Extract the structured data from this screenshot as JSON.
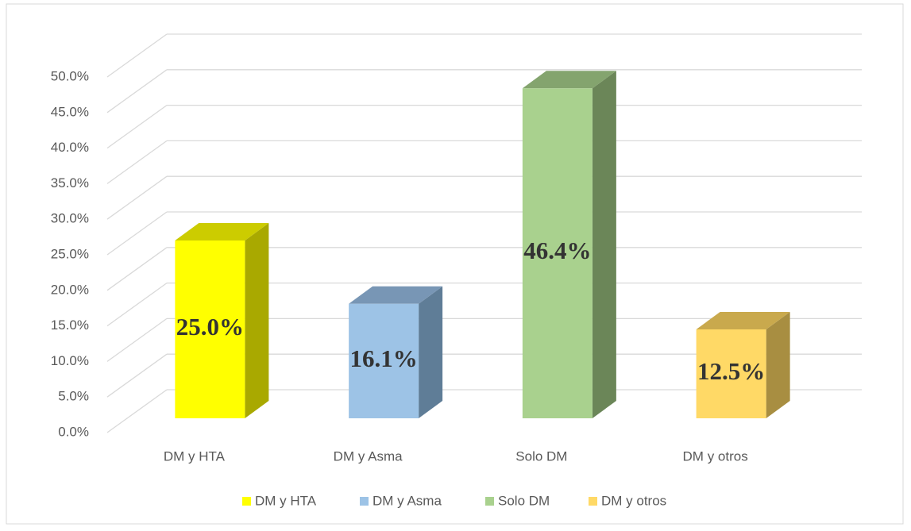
{
  "chart_data": {
    "type": "bar3d",
    "categories": [
      "DM y HTA",
      "DM y Asma",
      "Solo DM",
      "DM y otros"
    ],
    "values": [
      25.0,
      16.1,
      46.4,
      12.5
    ],
    "value_labels": [
      "25.0%",
      "16.1%",
      "46.4%",
      "12.5%"
    ],
    "colors": [
      "#ffff00",
      "#9dc3e6",
      "#a9d18e",
      "#ffd966"
    ],
    "side_colors": [
      "#a9a900",
      "#5f7d97",
      "#6b8658",
      "#a88e41"
    ],
    "top_colors": [
      "#cccc00",
      "#7896b5",
      "#84a46e",
      "#c9a94d"
    ],
    "ylim": [
      0,
      50
    ],
    "yticks": [
      {
        "value": 0,
        "label": "0.0%"
      },
      {
        "value": 5,
        "label": "5.0%"
      },
      {
        "value": 10,
        "label": "10.0%"
      },
      {
        "value": 15,
        "label": "15.0%"
      },
      {
        "value": 20,
        "label": "20.0%"
      },
      {
        "value": 25,
        "label": "25.0%"
      },
      {
        "value": 30,
        "label": "30.0%"
      },
      {
        "value": 35,
        "label": "35.0%"
      },
      {
        "value": 40,
        "label": "40.0%"
      },
      {
        "value": 45,
        "label": "45.0%"
      },
      {
        "value": 50,
        "label": "50.0%"
      }
    ],
    "grid": true,
    "legend": "bottom"
  }
}
